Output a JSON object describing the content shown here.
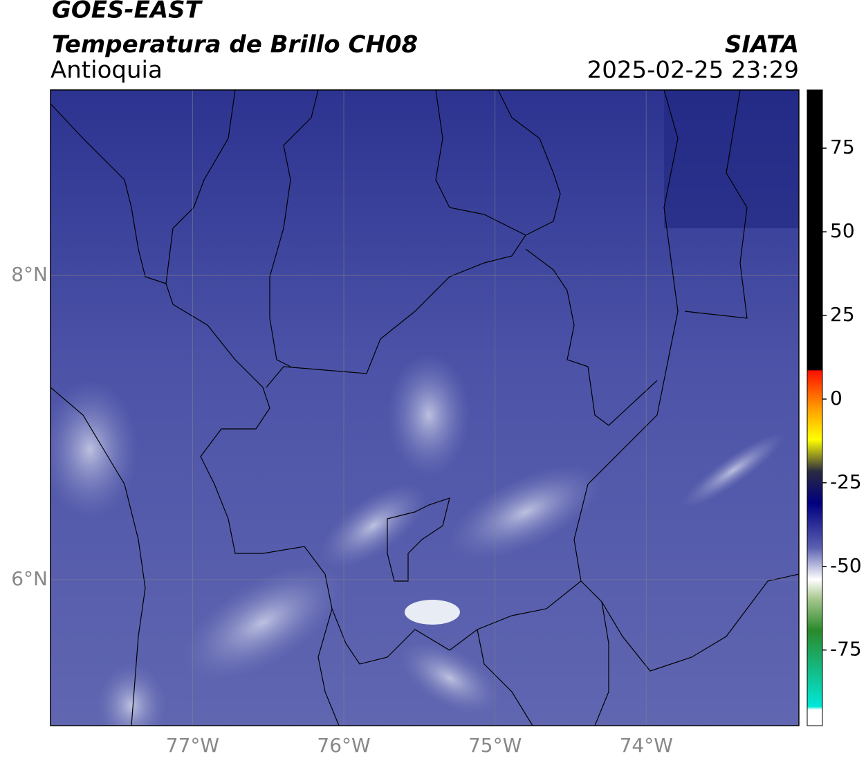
{
  "header": {
    "title": "GOES-EAST",
    "subtitle": "Temperatura de Brillo CH08",
    "region": "Antioquia",
    "source": "SIATA",
    "datetime": "2025-02-25 23:29"
  },
  "map": {
    "xlim": [
      -77.94,
      -72.99
    ],
    "ylim": [
      5.04,
      9.22
    ],
    "xticks": [
      {
        "value": -77,
        "label": "77°W"
      },
      {
        "value": -76,
        "label": "76°W"
      },
      {
        "value": -75,
        "label": "75°W"
      },
      {
        "value": -74,
        "label": "74°W"
      }
    ],
    "yticks": [
      {
        "value": 8,
        "label": "8°N"
      },
      {
        "value": 6,
        "label": "6°N"
      }
    ]
  },
  "colorbar": {
    "lim": [
      -97.6,
      92.4
    ],
    "ticks": [
      75,
      50,
      25,
      0,
      -25,
      -50,
      -75
    ]
  }
}
